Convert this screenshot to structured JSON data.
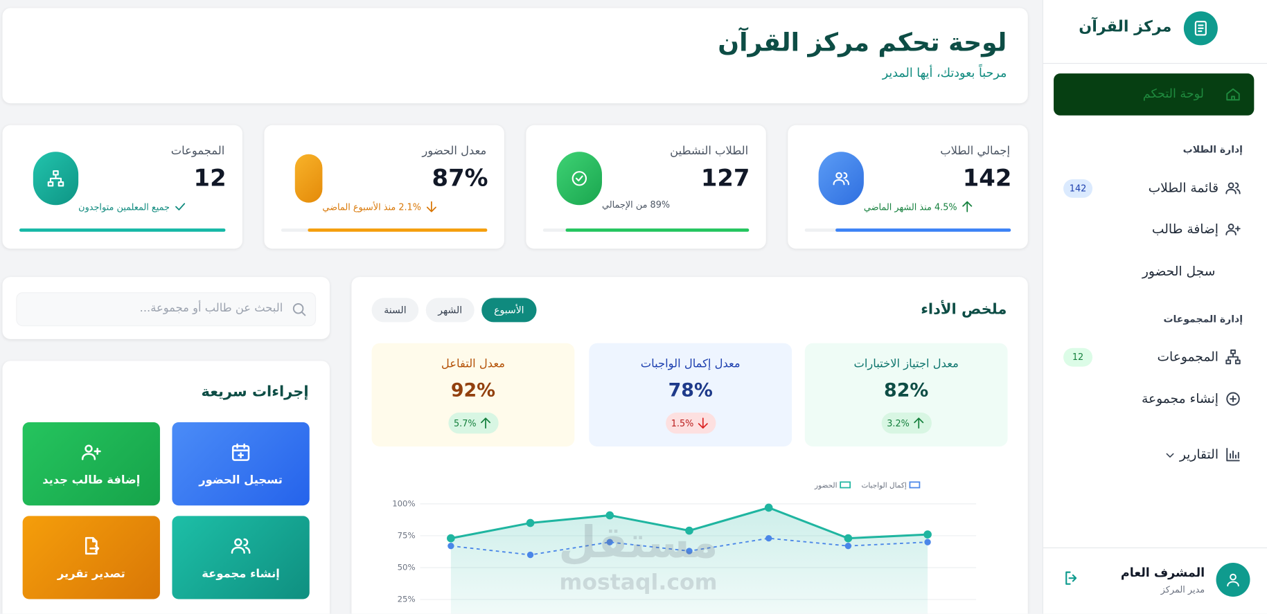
{
  "sidebar": {
    "brand": "مركز القرآن",
    "active_item": "لوحة التحكم",
    "sections": [
      {
        "title": "إدارة الطلاب",
        "items": [
          {
            "label": "قائمة الطلاب",
            "badge": 142
          },
          {
            "label": "إضافة طالب"
          },
          {
            "label": "سجل الحضور"
          }
        ]
      },
      {
        "title": "إدارة المجموعات",
        "items": [
          {
            "label": "المجموعات",
            "badge": 12
          },
          {
            "label": "إنشاء مجموعة"
          }
        ]
      }
    ],
    "reports": "التقارير",
    "user": {
      "name": "المشرف العام",
      "role": "مدير المركز"
    }
  },
  "header": {
    "title": "لوحة تحكم مركز القرآن",
    "subtitle": "مرحباً بعودتك، أيها المدير"
  },
  "stats": [
    {
      "label": "إجمالي الطلاب",
      "value": 142,
      "note": "4.5% منذ الشهر الماضي",
      "trend": "up"
    },
    {
      "label": "الطلاب النشطين",
      "value": 127,
      "note": "89% من الإجمالي",
      "trend": "none"
    },
    {
      "label": "معدل الحضور",
      "value": "87%",
      "note": "2.1% منذ الأسبوع الماضي",
      "trend": "down"
    },
    {
      "label": "المجموعات",
      "value": 12,
      "note": "جميع المعلمين متواجدون",
      "trend": "check"
    }
  ],
  "performance": {
    "title": "ملخص الأداء",
    "tabs": [
      "الأسبوع",
      "الشهر",
      "السنة"
    ],
    "active_tab": 0,
    "metrics": [
      {
        "label": "معدل اجتياز الاختبارات",
        "value": "82%",
        "change": "3.2%",
        "trend": "up"
      },
      {
        "label": "معدل إكمال الواجبات",
        "value": "78%",
        "change": "1.5%",
        "trend": "down"
      },
      {
        "label": "معدل التفاعل",
        "value": "92%",
        "change": "5.7%",
        "trend": "up"
      }
    ],
    "chart": {
      "type": "line",
      "categories": [
        null,
        null,
        null,
        null,
        null,
        null,
        null
      ],
      "series": [
        {
          "name": "الحضور",
          "color": "#1fb5a0",
          "values": [
            73,
            85,
            91,
            79,
            97,
            73,
            76
          ],
          "fill": true
        },
        {
          "name": "إكمال الواجبات",
          "color": "#4a86e8",
          "values": [
            67,
            60,
            70,
            63,
            73,
            67,
            70
          ],
          "dashed": true
        }
      ],
      "ylim": [
        0,
        100
      ],
      "yticks": [
        {
          "value": 25,
          "label": "25%"
        },
        {
          "value": 50,
          "label": "50%"
        },
        {
          "value": 75,
          "label": "75%"
        },
        {
          "value": 100,
          "label": "100%"
        }
      ],
      "grid": true
    }
  },
  "search": {
    "placeholder": "البحث عن طالب أو مجموعة..."
  },
  "quick_actions": {
    "title": "إجراءات سريعة",
    "buttons": [
      "تسجيل الحضور",
      "إضافة طالب جديد",
      "إنشاء مجموعة",
      "تصدير تقرير"
    ]
  },
  "watermark": {
    "arabic": "مستقل",
    "latin": "mostaql.com"
  }
}
